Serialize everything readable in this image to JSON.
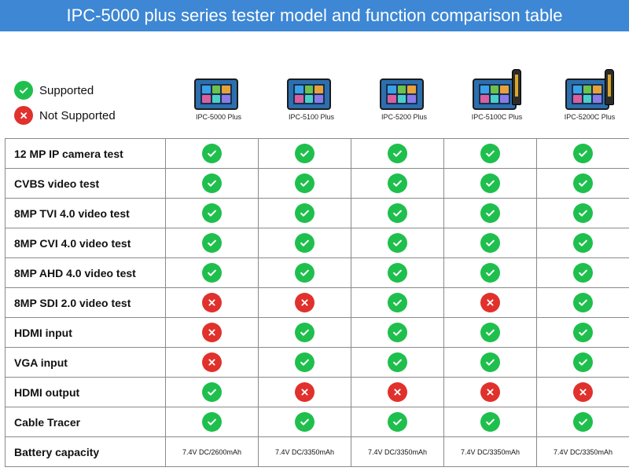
{
  "title": "IPC-5000 plus series tester model and function comparison table",
  "colors": {
    "banner": "#3d87d4",
    "supported": "#1fbf4d",
    "not_supported": "#e0312d"
  },
  "legend": [
    {
      "status": "supported",
      "icon": "check-icon",
      "label": "Supported"
    },
    {
      "status": "not_supported",
      "icon": "cross-icon",
      "label": "Not Supported"
    }
  ],
  "models": [
    {
      "name": "IPC-5000 Plus",
      "cable_tracer_probe": false
    },
    {
      "name": "IPC-5100 Plus",
      "cable_tracer_probe": false
    },
    {
      "name": "IPC-5200 Plus",
      "cable_tracer_probe": false
    },
    {
      "name": "IPC-5100C Plus",
      "cable_tracer_probe": true
    },
    {
      "name": "IPC-5200C Plus",
      "cable_tracer_probe": true
    }
  ],
  "features": [
    {
      "name": "12 MP IP camera test",
      "support": [
        true,
        true,
        true,
        true,
        true
      ]
    },
    {
      "name": "CVBS video test",
      "support": [
        true,
        true,
        true,
        true,
        true
      ]
    },
    {
      "name": "8MP TVI 4.0 video test",
      "support": [
        true,
        true,
        true,
        true,
        true
      ]
    },
    {
      "name": "8MP CVI 4.0 video test",
      "support": [
        true,
        true,
        true,
        true,
        true
      ]
    },
    {
      "name": "8MP AHD 4.0 video test",
      "support": [
        true,
        true,
        true,
        true,
        true
      ]
    },
    {
      "name": "8MP SDI 2.0 video test",
      "support": [
        false,
        false,
        true,
        false,
        true
      ]
    },
    {
      "name": "HDMI input",
      "support": [
        false,
        true,
        true,
        true,
        true
      ]
    },
    {
      "name": "VGA input",
      "support": [
        false,
        true,
        true,
        true,
        true
      ]
    },
    {
      "name": "HDMI output",
      "support": [
        true,
        false,
        false,
        false,
        false
      ]
    },
    {
      "name": "Cable Tracer",
      "support": [
        true,
        true,
        true,
        true,
        true
      ]
    }
  ],
  "battery": {
    "label": "Battery capacity",
    "values": [
      "7.4V DC/2600mAh",
      "7.4V DC/3350mAh",
      "7.4V DC/3350mAh",
      "7.4V DC/3350mAh",
      "7.4V DC/3350mAh"
    ]
  }
}
